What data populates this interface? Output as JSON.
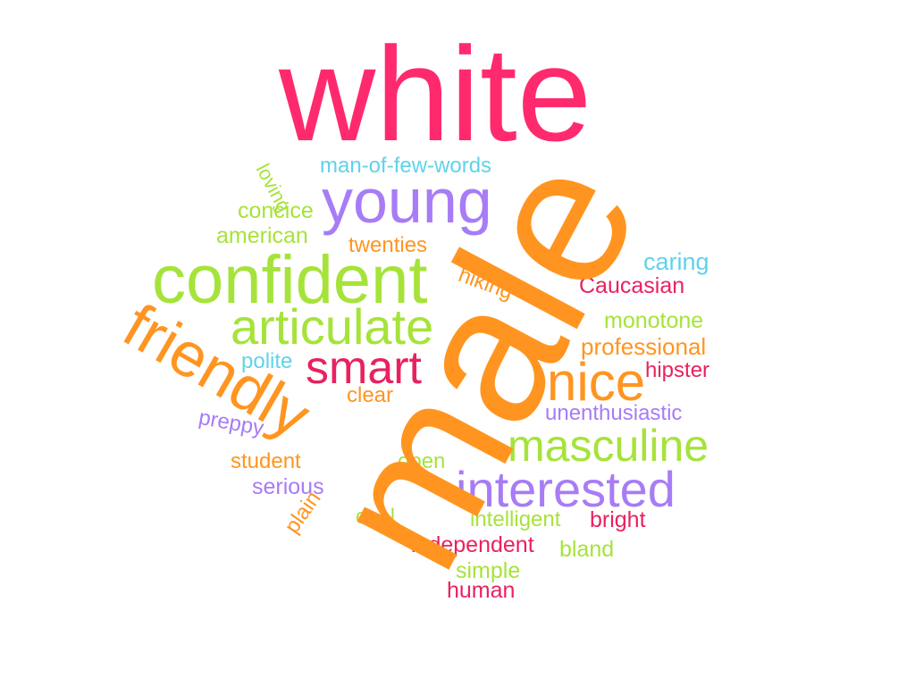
{
  "word_cloud": {
    "words": {
      "white": "white",
      "male": "male",
      "loving": "loving",
      "man_of_few_words": "man-of-few-words",
      "young": "young",
      "concice": "concice",
      "american": "american",
      "twenties": "twenties",
      "caring": "caring",
      "confident": "confident",
      "hiking": "hiking",
      "caucasian": "Caucasian",
      "articulate": "articulate",
      "monotone": "monotone",
      "friendly": "friendly",
      "professional": "professional",
      "polite": "polite",
      "smart": "smart",
      "hipster": "hipster",
      "nice": "nice",
      "clear": "clear",
      "unenthusiastic": "unenthusiastic",
      "preppy": "preppy",
      "masculine": "masculine",
      "student": "student",
      "open": "open",
      "interested": "interested",
      "serious": "serious",
      "plain": "plain",
      "cool": "cool",
      "intelligent": "intelligent",
      "bright": "bright",
      "independent": "independent",
      "bland": "bland",
      "simple": "simple",
      "human": "human"
    },
    "palette": {
      "pink": "#ff2a6d",
      "crimson": "#e8225e",
      "orange": "#ff9520",
      "lime": "#a6e33a",
      "purple": "#a77cf6",
      "cyan": "#5fd3ea"
    }
  }
}
